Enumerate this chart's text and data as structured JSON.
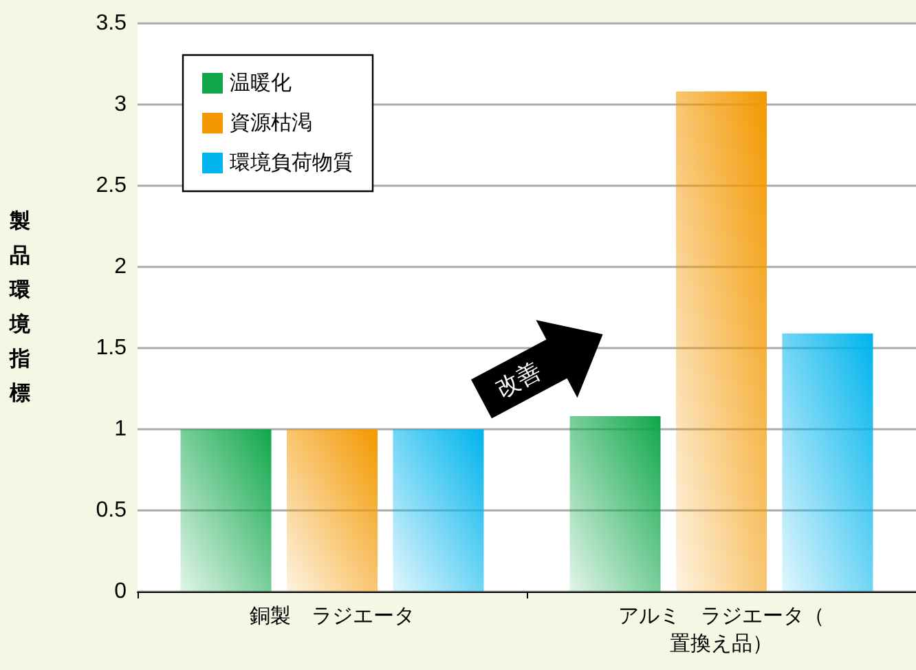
{
  "chart_data": {
    "type": "bar",
    "ylabel": "製品環境指標",
    "categories": [
      "銅製　ラジエータ",
      "アルミ　ラジエータ（置換え品）"
    ],
    "series": [
      {
        "name": "温暖化",
        "color": "#0fa74a",
        "values": [
          1,
          1.08
        ]
      },
      {
        "name": "資源枯渇",
        "color": "#f39800",
        "values": [
          1,
          3.08
        ]
      },
      {
        "name": "環境負荷物質",
        "color": "#00b4ed",
        "values": [
          1,
          1.59
        ]
      }
    ],
    "ylim": [
      0,
      3.5
    ],
    "yticks": [
      0,
      0.5,
      1,
      1.5,
      2,
      2.5,
      3,
      3.5
    ],
    "grid": "y",
    "legend": "top left",
    "annotations": [
      "改善"
    ]
  }
}
